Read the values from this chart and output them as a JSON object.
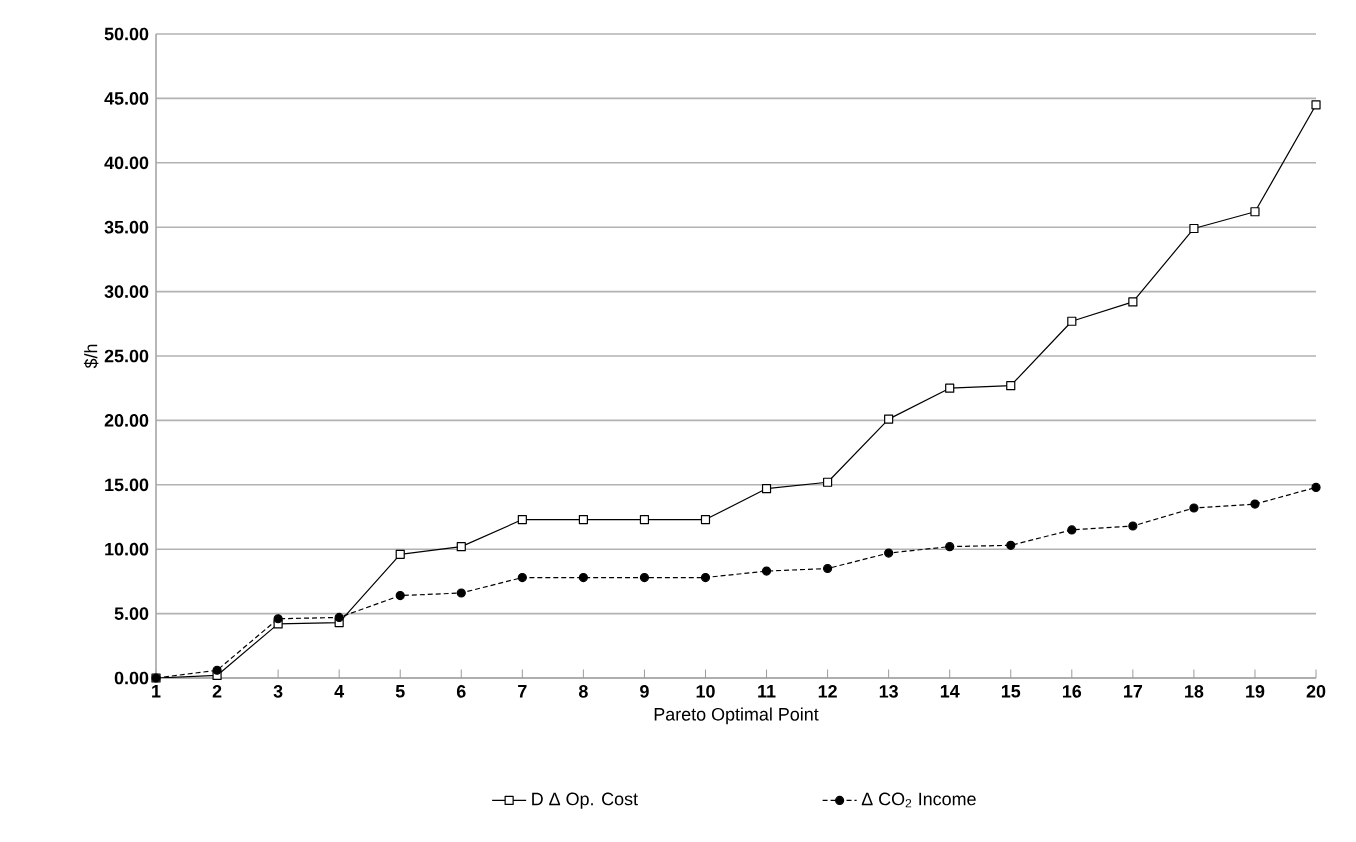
{
  "chart_data": {
    "type": "line",
    "xlabel": "Pareto Optimal Point",
    "ylabel": "$/h",
    "categories": [
      "1",
      "2",
      "3",
      "4",
      "5",
      "6",
      "7",
      "8",
      "9",
      "10",
      "11",
      "12",
      "13",
      "14",
      "15",
      "16",
      "17",
      "18",
      "19",
      "20"
    ],
    "series": [
      {
        "name": "D Δ Op. Cost",
        "color": "#000000",
        "marker": "square",
        "line_style": "solid",
        "values": [
          0,
          0.2,
          4.2,
          4.3,
          9.6,
          10.2,
          12.3,
          12.3,
          12.3,
          12.3,
          14.7,
          15.2,
          20.1,
          22.5,
          22.7,
          27.7,
          29.2,
          34.9,
          36.2,
          44.5
        ]
      },
      {
        "name": "Δ CO$_{2}$ Income",
        "color": "#000000",
        "marker": "circle",
        "line_style": "dashed",
        "values": [
          0,
          0.6,
          4.6,
          4.7,
          6.4,
          6.6,
          7.8,
          7.8,
          7.8,
          7.8,
          8.3,
          8.5,
          9.7,
          10.2,
          10.3,
          11.5,
          11.8,
          13.2,
          13.5,
          14.8
        ]
      }
    ],
    "ylim": [
      0,
      50
    ],
    "yticks": [
      {
        "value": 0,
        "label": "0.00"
      },
      {
        "value": 5,
        "label": "5.00"
      },
      {
        "value": 10,
        "label": "10.00"
      },
      {
        "value": 15,
        "label": "15.00"
      },
      {
        "value": 20,
        "label": "20.00"
      },
      {
        "value": 25,
        "label": "25.00"
      },
      {
        "value": 30,
        "label": "30.00"
      },
      {
        "value": 35,
        "label": "35.00"
      },
      {
        "value": 40,
        "label": "40.00"
      },
      {
        "value": 45,
        "label": "45.00"
      },
      {
        "value": 50,
        "label": "50.00"
      }
    ],
    "grid": "y",
    "legend": "bottom"
  }
}
